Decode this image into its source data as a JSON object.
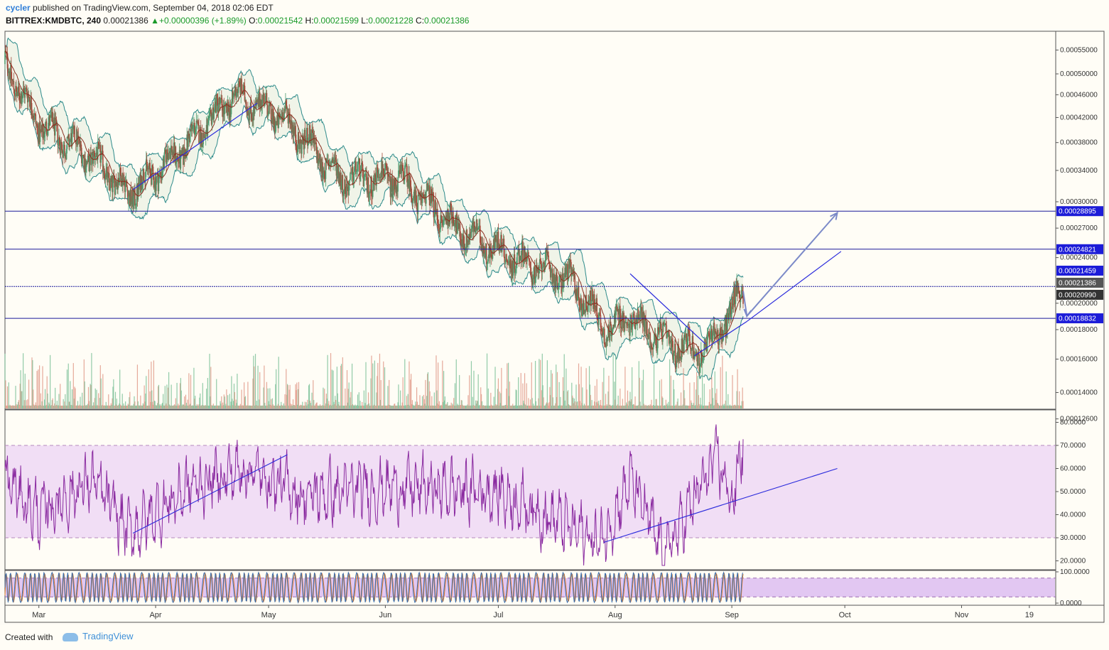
{
  "header": {
    "author": "cycler",
    "published_text": "published on TradingView.com, September 04, 2018 02:06 EDT",
    "symbol": "BITTREX:KMDBTC, 240",
    "last": "0.00021386",
    "change": "+0.00000396 (+1.89%)",
    "open_label": "O:",
    "open": "0.00021542",
    "high_label": "H:",
    "high": "0.00021599",
    "low_label": "L:",
    "low": "0.00021228",
    "close_label": "C:",
    "close": "0.00021386"
  },
  "footer": {
    "created_with": "Created with",
    "brand": "TradingView"
  },
  "colors": {
    "background": "#fdfbf5",
    "candle_up": "#4d9a6e",
    "candle_down": "#a34a3a",
    "bollinger": "#2e8b8b",
    "bb_fill": "#e6efe0",
    "ma_line": "#8b2f20",
    "level_line": "#1a1a9a",
    "trend_line": "#2a2adc",
    "arrow": "#7c8ac8",
    "rsi_line": "#8a2aa0",
    "rsi_band": "#f1def5",
    "stoch_band": "#e2c7f2",
    "stoch_k": "#3a6fb0",
    "stoch_d": "#e07a2a",
    "tag_blue": "#1c1cd8",
    "tag_gray": "#555555"
  },
  "chart_data": [
    {
      "type": "line",
      "panel": "price",
      "price_axis_ticks": [
        "0.00055000",
        "0.00050000",
        "0.00046000",
        "0.00042000",
        "0.00038000",
        "0.00034000",
        "0.00030000",
        "0.00027000",
        "0.00024000",
        "0.00020000",
        "0.00018000",
        "0.00016000",
        "0.00014000",
        "0.00012600"
      ],
      "x_ticks": [
        "Mar",
        "Apr",
        "May",
        "Jun",
        "Jul",
        "Aug",
        "Sep",
        "Oct",
        "Nov",
        "19"
      ],
      "approx_close_path": [
        {
          "date": "2018-02-20",
          "close": 0.00052
        },
        {
          "date": "2018-03-01",
          "close": 0.00041
        },
        {
          "date": "2018-03-15",
          "close": 0.00036
        },
        {
          "date": "2018-03-25",
          "close": 0.00031
        },
        {
          "date": "2018-04-08",
          "close": 0.00037
        },
        {
          "date": "2018-04-22",
          "close": 0.00046
        },
        {
          "date": "2018-05-05",
          "close": 0.00042
        },
        {
          "date": "2018-05-20",
          "close": 0.00033
        },
        {
          "date": "2018-06-05",
          "close": 0.00033
        },
        {
          "date": "2018-06-20",
          "close": 0.00027
        },
        {
          "date": "2018-07-05",
          "close": 0.00024
        },
        {
          "date": "2018-07-20",
          "close": 0.00022
        },
        {
          "date": "2018-07-30",
          "close": 0.00018
        },
        {
          "date": "2018-08-05",
          "close": 0.00019
        },
        {
          "date": "2018-08-15",
          "close": 0.00017
        },
        {
          "date": "2018-08-25",
          "close": 0.000165
        },
        {
          "date": "2018-09-01",
          "close": 0.000195
        },
        {
          "date": "2018-09-04",
          "close": 0.00021386
        }
      ],
      "horizontal_levels": [
        {
          "value": 0.00028895,
          "label": "0.00028895"
        },
        {
          "value": 0.00024821,
          "label": "0.00024821"
        },
        {
          "value": 0.00021386,
          "label": "0.00021386"
        },
        {
          "value": 0.00018832,
          "label": "0.00018832"
        }
      ],
      "price_tags": [
        {
          "label": "0.00028895",
          "kind": "blue"
        },
        {
          "label": "0.00024821",
          "kind": "blue"
        },
        {
          "label": "0.00021459",
          "kind": "blue"
        },
        {
          "label": "0.00021386",
          "kind": "gray"
        },
        {
          "label": "0.00020990",
          "kind": "dark"
        },
        {
          "label": "0.00018832",
          "kind": "blue"
        }
      ]
    },
    {
      "type": "line",
      "panel": "rsi",
      "axis_ticks": [
        "80.0000",
        "70.0000",
        "60.0000",
        "50.0000",
        "40.0000",
        "30.0000",
        "20.0000"
      ],
      "band": [
        30,
        70
      ],
      "approx_path": [
        {
          "date": "2018-02-20",
          "value": 55
        },
        {
          "date": "2018-03-01",
          "value": 40
        },
        {
          "date": "2018-03-15",
          "value": 55
        },
        {
          "date": "2018-03-25",
          "value": 32
        },
        {
          "date": "2018-04-10",
          "value": 52
        },
        {
          "date": "2018-04-25",
          "value": 60
        },
        {
          "date": "2018-05-10",
          "value": 48
        },
        {
          "date": "2018-06-01",
          "value": 52
        },
        {
          "date": "2018-07-01",
          "value": 50
        },
        {
          "date": "2018-07-28",
          "value": 28
        },
        {
          "date": "2018-08-05",
          "value": 55
        },
        {
          "date": "2018-08-14",
          "value": 22
        },
        {
          "date": "2018-08-28",
          "value": 65
        },
        {
          "date": "2018-09-01",
          "value": 45
        },
        {
          "date": "2018-09-04",
          "value": 72
        }
      ]
    },
    {
      "type": "line",
      "panel": "stochastic",
      "axis_ticks": [
        "100.0000",
        "0.0000"
      ],
      "band": [
        20,
        80
      ]
    }
  ]
}
